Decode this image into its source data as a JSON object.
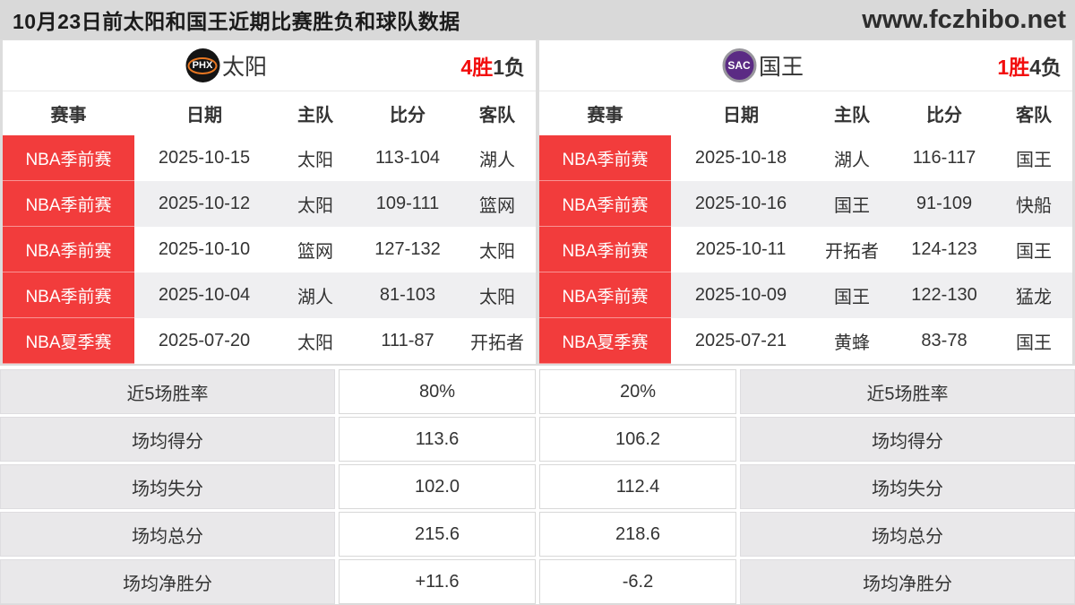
{
  "header": {
    "title": "10月23日前太阳和国王近期比赛胜负和球队数据",
    "site": "www.fczhibo.net"
  },
  "columns": [
    "赛事",
    "日期",
    "主队",
    "比分",
    "客队"
  ],
  "suns": {
    "abbr": "PHX",
    "name": "太阳",
    "wins": "4胜",
    "losses": "1负",
    "matches": [
      {
        "league": "NBA季前赛",
        "date": "2025-10-15",
        "home": "太阳",
        "score": "113-104",
        "away": "湖人"
      },
      {
        "league": "NBA季前赛",
        "date": "2025-10-12",
        "home": "太阳",
        "score": "109-111",
        "away": "篮网"
      },
      {
        "league": "NBA季前赛",
        "date": "2025-10-10",
        "home": "篮网",
        "score": "127-132",
        "away": "太阳"
      },
      {
        "league": "NBA季前赛",
        "date": "2025-10-04",
        "home": "湖人",
        "score": "81-103",
        "away": "太阳"
      },
      {
        "league": "NBA夏季赛",
        "date": "2025-07-20",
        "home": "太阳",
        "score": "111-87",
        "away": "开拓者"
      }
    ]
  },
  "kings": {
    "abbr": "SAC",
    "name": "国王",
    "wins": "1胜",
    "losses": "4负",
    "matches": [
      {
        "league": "NBA季前赛",
        "date": "2025-10-18",
        "home": "湖人",
        "score": "116-117",
        "away": "国王"
      },
      {
        "league": "NBA季前赛",
        "date": "2025-10-16",
        "home": "国王",
        "score": "91-109",
        "away": "快船"
      },
      {
        "league": "NBA季前赛",
        "date": "2025-10-11",
        "home": "开拓者",
        "score": "124-123",
        "away": "国王"
      },
      {
        "league": "NBA季前赛",
        "date": "2025-10-09",
        "home": "国王",
        "score": "122-130",
        "away": "猛龙"
      },
      {
        "league": "NBA夏季赛",
        "date": "2025-07-21",
        "home": "黄蜂",
        "score": "83-78",
        "away": "国王"
      }
    ]
  },
  "stats": {
    "rows": [
      {
        "label": "近5场胜率",
        "suns": "80%",
        "kings": "20%"
      },
      {
        "label": "场均得分",
        "suns": "113.6",
        "kings": "106.2"
      },
      {
        "label": "场均失分",
        "suns": "102.0",
        "kings": "112.4"
      },
      {
        "label": "场均总分",
        "suns": "215.6",
        "kings": "218.6"
      },
      {
        "label": "场均净胜分",
        "suns": "+11.6",
        "kings": "-6.2"
      }
    ]
  },
  "colors": {
    "accent_red": "#f23c3c",
    "win_red": "#f20d0d",
    "topbar_bg": "#d9d9d9",
    "row_alt": "#efeff1",
    "stat_label_bg": "#e9e8ea",
    "suns_logo_bg": "#141414",
    "suns_logo_ring": "#e87722",
    "kings_logo_bg": "#5b2b84"
  }
}
